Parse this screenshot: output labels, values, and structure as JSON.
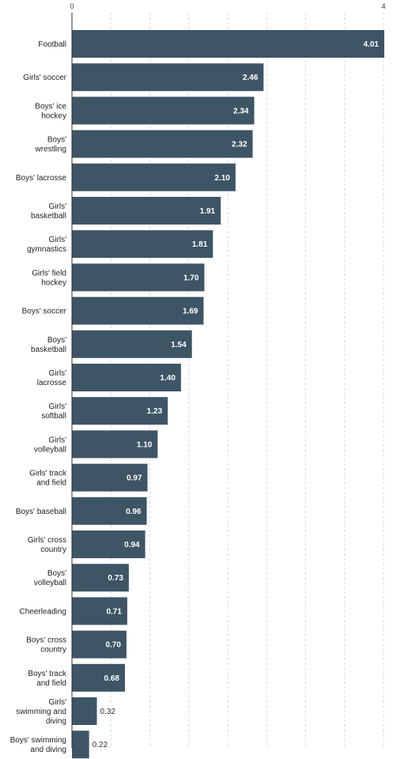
{
  "chart_data": {
    "type": "bar",
    "orientation": "horizontal",
    "title": "",
    "xlabel": "",
    "ylabel": "",
    "xlim": [
      0,
      4
    ],
    "x_ticks": [
      0,
      4
    ],
    "grid": true,
    "bar_color": "#3e5566",
    "categories": [
      "Football",
      "Girls' soccer",
      "Boys' ice hockey",
      "Boys' wrestling",
      "Boys' lacrosse",
      "Girls' basketball",
      "Girls' gymnastics",
      "Girls' field hockey",
      "Boys' soccer",
      "Boys' basketball",
      "Girls' lacrosse",
      "Girls' softball",
      "Girls' volleyball",
      "Girls' track and field",
      "Boys' baseball",
      "Girls' cross country",
      "Boys' volleyball",
      "Cheerleading",
      "Boys' cross country",
      "Boys' track and field",
      "Girls' swimming and diving",
      "Boys' swimming and diving"
    ],
    "values": [
      4.01,
      2.46,
      2.34,
      2.32,
      2.1,
      1.91,
      1.81,
      1.7,
      1.69,
      1.54,
      1.4,
      1.23,
      1.1,
      0.97,
      0.96,
      0.94,
      0.73,
      0.71,
      0.7,
      0.68,
      0.32,
      0.22
    ],
    "value_labels": [
      "4.01",
      "2.46",
      "2.34",
      "2.32",
      "2.10",
      "1.91",
      "1.81",
      "1.70",
      "1.69",
      "1.54",
      "1.40",
      "1.23",
      "1.10",
      "0.97",
      "0.96",
      "0.94",
      "0.73",
      "0.71",
      "0.70",
      "0.68",
      "0.32",
      "0.22"
    ],
    "category_label_lines": [
      [
        "Football"
      ],
      [
        "Girls' soccer"
      ],
      [
        "Boys' ice",
        "hockey"
      ],
      [
        "Boys'",
        "wrestling"
      ],
      [
        "Boys' lacrosse"
      ],
      [
        "Girls'",
        "basketball"
      ],
      [
        "Girls'",
        "gymnastics"
      ],
      [
        "Girls' field",
        "hockey"
      ],
      [
        "Boys' soccer"
      ],
      [
        "Boys'",
        "basketball"
      ],
      [
        "Girls'",
        "lacrosse"
      ],
      [
        "Girls'",
        "softball"
      ],
      [
        "Girls'",
        "volleyball"
      ],
      [
        "Girls' track",
        "and field"
      ],
      [
        "Boys' baseball"
      ],
      [
        "Girls' cross",
        "country"
      ],
      [
        "Boys'",
        "volleyball"
      ],
      [
        "Cheerleading"
      ],
      [
        "Boys' cross",
        "country"
      ],
      [
        "Boys' track",
        "and field"
      ],
      [
        "Girls'",
        "swimming and",
        "diving"
      ],
      [
        "Boys' swimming",
        "and diving"
      ]
    ]
  }
}
